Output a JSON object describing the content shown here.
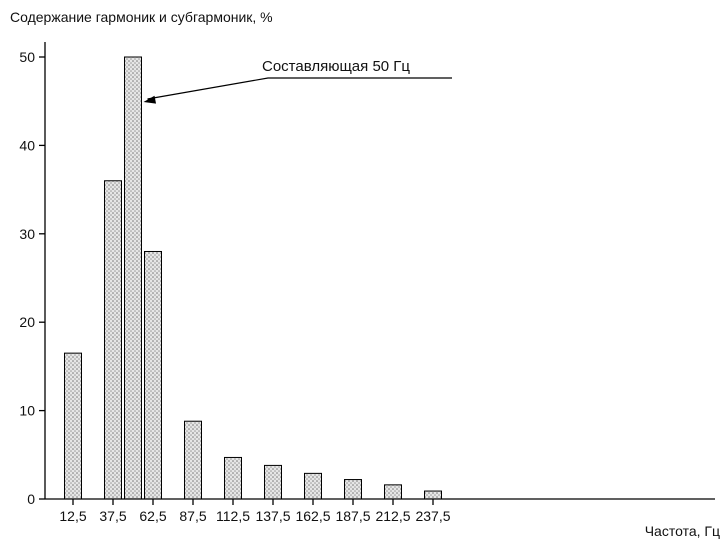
{
  "chart_data": {
    "type": "bar",
    "ylabel": "Содержание гармоник и субгармоник, %",
    "xlabel": "Частота, Гц",
    "categories": [
      "12,5",
      "37,5",
      "50",
      "62,5",
      "87,5",
      "112,5",
      "137,5",
      "162,5",
      "187,5",
      "212,5",
      "237,5"
    ],
    "x": [
      12.5,
      37.5,
      50,
      62.5,
      87.5,
      112.5,
      137.5,
      162.5,
      187.5,
      212.5,
      237.5
    ],
    "values": [
      16.5,
      36,
      50,
      28,
      8.8,
      4.7,
      3.8,
      2.9,
      2.2,
      1.6,
      0.9
    ],
    "xticks": [
      12.5,
      37.5,
      62.5,
      87.5,
      112.5,
      137.5,
      162.5,
      187.5,
      212.5,
      237.5
    ],
    "xtick_labels": [
      "12,5",
      "37,5",
      "62,5",
      "87,5",
      "112,5",
      "137,5",
      "162,5",
      "187,5",
      "212,5",
      "237,5"
    ],
    "yticks": [
      0,
      10,
      20,
      30,
      40,
      50
    ],
    "ylim": [
      0,
      50
    ],
    "grid": false,
    "annotation": {
      "text": "Составляющая 50 Гц",
      "target_x": 50,
      "target_y": 50
    }
  }
}
